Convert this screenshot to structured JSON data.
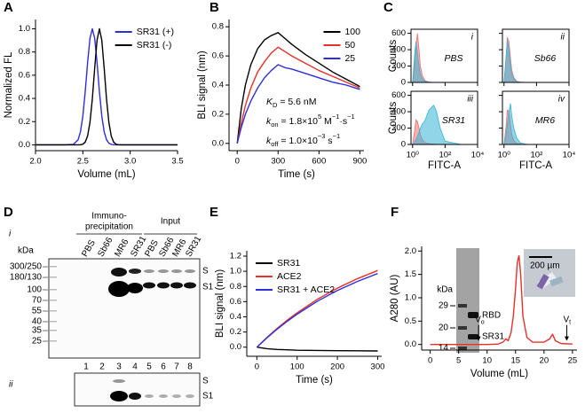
{
  "chart_data": [
    {
      "type": "line",
      "panel": "A",
      "xlabel": "Volume (mL)",
      "ylabel": "Normalized FL",
      "xlim": [
        2.0,
        3.5
      ],
      "ylim": [
        -0.05,
        1.08
      ],
      "xticks": [
        {
          "value": 2.0,
          "label": "2.0"
        },
        2.5,
        {
          "value": 3.0,
          "label": "3.0"
        },
        3.5
      ],
      "yticks": [
        {
          "value": 0,
          "label": "0.0"
        },
        0.2,
        0.4,
        0.6,
        0.8,
        {
          "value": 1,
          "label": "1.0"
        }
      ],
      "legend": "upper right",
      "x": [
        2.0,
        2.3,
        2.4,
        2.45,
        2.475,
        2.5,
        2.525,
        2.55,
        2.575,
        2.6,
        2.625,
        2.65,
        2.675,
        2.7,
        2.725,
        2.75,
        2.775,
        2.8,
        2.825,
        2.85,
        2.875,
        2.9,
        3.0,
        3.5
      ],
      "series": [
        {
          "name": "SR31 (+)",
          "color": "#2d2ddb",
          "values": [
            0,
            0,
            0.004,
            0.044,
            0.114,
            0.249,
            0.458,
            0.707,
            0.917,
            1,
            0.917,
            0.707,
            0.458,
            0.249,
            0.114,
            0.044,
            0.014,
            0.004,
            0.001,
            0,
            0,
            0,
            0,
            0
          ]
        },
        {
          "name": "SR31 (-)",
          "color": "#000000",
          "values": [
            0,
            0,
            0,
            0,
            0.001,
            0.006,
            0.024,
            0.076,
            0.192,
            0.395,
            0.662,
            0.902,
            1,
            0.902,
            0.662,
            0.395,
            0.192,
            0.076,
            0.024,
            0.006,
            0.001,
            0,
            0,
            0
          ]
        }
      ]
    },
    {
      "type": "line",
      "panel": "B",
      "xlabel": "Time (s)",
      "ylabel": "BLI signal (nm)",
      "xlim": [
        -60,
        930
      ],
      "ylim": [
        -0.05,
        0.85
      ],
      "xticks": [
        0,
        300,
        600,
        900
      ],
      "yticks": [
        {
          "value": 0,
          "label": "0.0"
        },
        0.2,
        0.4,
        0.6,
        0.8
      ],
      "legend": "upper right",
      "annotations": [
        [
          "K",
          "D",
          " = 5.6 nM"
        ],
        [
          "k",
          "on",
          " = 1.8×10",
          "5",
          " M",
          "−1",
          "·s",
          "−1"
        ],
        [
          "k",
          "off",
          " = 1.0×10",
          "−3",
          " s",
          "−1"
        ]
      ],
      "x": [
        0,
        30,
        60,
        100,
        150,
        200,
        250,
        300,
        350,
        400,
        500,
        600,
        700,
        800,
        900
      ],
      "series": [
        {
          "name": "100",
          "color": "#000000",
          "values": [
            0,
            0.24,
            0.4,
            0.54,
            0.65,
            0.71,
            0.74,
            0.76,
            0.72,
            0.68,
            0.61,
            0.55,
            0.49,
            0.44,
            0.39
          ]
        },
        {
          "name": "50",
          "color": "#e8302b",
          "values": [
            0,
            0.14,
            0.26,
            0.38,
            0.49,
            0.56,
            0.62,
            0.66,
            0.63,
            0.6,
            0.55,
            0.5,
            0.46,
            0.42,
            0.38
          ]
        },
        {
          "name": "25",
          "color": "#2d2ddb",
          "values": [
            0,
            0.11,
            0.2,
            0.29,
            0.38,
            0.45,
            0.5,
            0.54,
            0.52,
            0.51,
            0.48,
            0.45,
            0.42,
            0.4,
            0.37
          ]
        }
      ]
    },
    {
      "type": "area",
      "panel": "C",
      "xlabel": "FITC-A",
      "ylabel": "Counts",
      "xscale": "log",
      "xlim": [
        0.8,
        10000
      ],
      "ylim": [
        0,
        650
      ],
      "xticks": [
        {
          "value": 1,
          "label": "10⁰"
        },
        {
          "value": 100,
          "label": "10²"
        },
        {
          "value": 10000,
          "label": "10⁴"
        }
      ],
      "yticks": [
        0,
        200,
        400,
        600
      ],
      "x": [
        1,
        1.3,
        1.6,
        2,
        2.5,
        3,
        4,
        6,
        10,
        20,
        30,
        50,
        100,
        1000,
        10000
      ],
      "subplots": [
        {
          "label": "i",
          "name": "PBS",
          "series": [
            {
              "color": "#f26d6d",
              "values": [
                0,
                200,
                450,
                600,
                400,
                200,
                80,
                20,
                5,
                0,
                0,
                0,
                0,
                0,
                0
              ]
            },
            {
              "color": "#35b3d6",
              "values": [
                0,
                300,
                500,
                350,
                200,
                100,
                40,
                10,
                2,
                0,
                0,
                0,
                0,
                0,
                0
              ]
            }
          ]
        },
        {
          "label": "ii",
          "name": "Sb66",
          "series": [
            {
              "color": "#f26d6d",
              "values": [
                0,
                250,
                550,
                500,
                300,
                150,
                60,
                15,
                5,
                0,
                0,
                0,
                0,
                0,
                0
              ]
            },
            {
              "color": "#35b3d6",
              "values": [
                0,
                280,
                520,
                400,
                220,
                100,
                40,
                10,
                2,
                0,
                0,
                0,
                0,
                0,
                0
              ]
            }
          ]
        },
        {
          "label": "iii",
          "name": "SR31",
          "series": [
            {
              "color": "#f26d6d",
              "values": [
                0,
                150,
                300,
                280,
                200,
                120,
                60,
                20,
                10,
                5,
                0,
                0,
                0,
                0,
                0
              ]
            },
            {
              "color": "#35b3d6",
              "values": [
                0,
                20,
                60,
                100,
                150,
                200,
                250,
                300,
                420,
                480,
                400,
                200,
                40,
                0,
                0
              ]
            }
          ]
        },
        {
          "label": "iv",
          "name": "MR6",
          "series": [
            {
              "color": "#f26d6d",
              "values": [
                0,
                200,
                420,
                400,
                250,
                120,
                50,
                15,
                5,
                0,
                0,
                0,
                0,
                0,
                0
              ]
            },
            {
              "color": "#35b3d6",
              "values": [
                0,
                100,
                250,
                400,
                500,
                350,
                200,
                80,
                20,
                5,
                0,
                0,
                0,
                0,
                0
              ]
            }
          ]
        }
      ]
    },
    {
      "type": "line",
      "panel": "E",
      "xlabel": "Time (s)",
      "ylabel": "BLI signal (nm)",
      "xlim": [
        -25,
        310
      ],
      "ylim": [
        -0.12,
        1.27
      ],
      "xticks": [
        0,
        100,
        200,
        300
      ],
      "yticks": [
        {
          "value": 0,
          "label": "0.0"
        },
        0.2,
        0.4,
        0.6,
        0.8,
        {
          "value": 1,
          "label": "1.0"
        },
        1.2
      ],
      "legend": "upper left",
      "x": [
        0,
        25,
        50,
        75,
        100,
        150,
        200,
        250,
        300
      ],
      "series": [
        {
          "name": "SR31",
          "color": "#000000",
          "values": [
            0,
            -0.02,
            -0.03,
            -0.035,
            -0.04,
            -0.043,
            -0.046,
            -0.048,
            -0.05
          ]
        },
        {
          "name": "ACE2",
          "color": "#e8302b",
          "values": [
            0,
            0.128,
            0.246,
            0.354,
            0.453,
            0.63,
            0.778,
            0.903,
            1.011
          ]
        },
        {
          "name": "SR31 + ACE2",
          "color": "#2d2ddb",
          "values": [
            0,
            0.123,
            0.236,
            0.34,
            0.435,
            0.605,
            0.747,
            0.867,
            0.971
          ]
        }
      ]
    },
    {
      "type": "line",
      "panel": "F",
      "xlabel": "Volume (mL)",
      "ylabel": "A280 (AU)",
      "xlim": [
        -1.5,
        25.8
      ],
      "ylim": [
        -0.12,
        2.1
      ],
      "xticks": [
        0,
        5,
        10,
        15,
        20,
        25
      ],
      "yticks": [
        {
          "value": 0,
          "label": "0.0"
        },
        0.5,
        {
          "value": 1,
          "label": "1.0"
        },
        1.5,
        {
          "value": 2,
          "label": "2.0"
        }
      ],
      "color": "#e8302b",
      "x": [
        0,
        5,
        8,
        10,
        12,
        12.8,
        13.3,
        13.7,
        14.2,
        14.6,
        15,
        15.3,
        15.6,
        15.9,
        16.3,
        17,
        18,
        20,
        21,
        21.5,
        22,
        23,
        25
      ],
      "values": [
        0,
        0,
        0,
        0,
        0.01,
        0.05,
        0.12,
        0.08,
        0.25,
        0.6,
        1.2,
        1.75,
        1.9,
        1.5,
        0.6,
        0.15,
        0.05,
        0.05,
        0.12,
        0.22,
        0.08,
        0.02,
        0.01
      ],
      "annotations": [
        {
          "text": "V",
          "sub": "o",
          "x": 8.5
        },
        {
          "text": "V",
          "sub": "t",
          "x": 24
        }
      ],
      "inset": {
        "unit": "kDa",
        "markers": [
          "29",
          "20",
          "14"
        ],
        "bands": [
          "RBD",
          "SR31"
        ],
        "scale_bar": "200 µm"
      }
    }
  ],
  "blot": {
    "panel": "D",
    "sub_labels": [
      "i",
      "ii"
    ],
    "groups": [
      [
        "Immuno-",
        "precipitation"
      ],
      [
        "Input"
      ]
    ],
    "lanes": [
      "PBS",
      "Sb66",
      "MR6",
      "SR31",
      "PBS",
      "Sb66",
      "MR6",
      "SR31"
    ],
    "lane_numbers": [
      "1",
      "2",
      "3",
      "4",
      "5",
      "6",
      "7",
      "8"
    ],
    "unit": "kDa",
    "markers": [
      "300/250",
      "180/130",
      "100",
      "70",
      "55",
      "40",
      "35",
      "25"
    ],
    "band_labels": [
      "S",
      "S1"
    ]
  }
}
